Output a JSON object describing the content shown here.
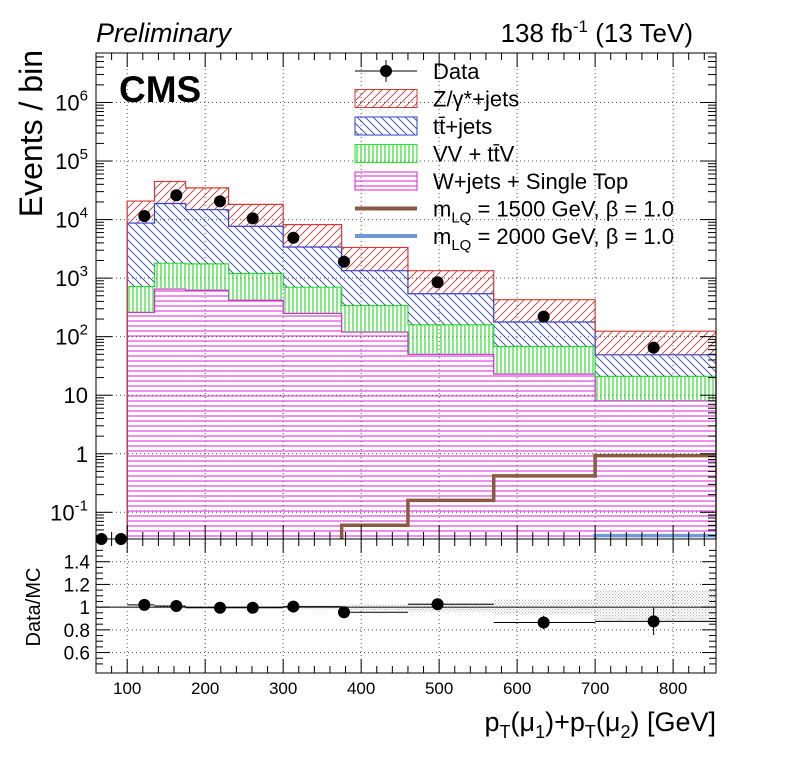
{
  "header": {
    "label_left": "Preliminary",
    "lumi_prefix": "138 fb",
    "lumi_exp": "-1",
    "lumi_suffix": " (13 TeV)",
    "experiment": "CMS"
  },
  "axes": {
    "ylabel": "Events / bin",
    "ratio_ylabel": "Data/MC",
    "xlabel": {
      "p1": "p",
      "s1": "T",
      "p2": "(μ",
      "s2": "1",
      "p3": ")+p",
      "s3": "T",
      "p4": "(μ",
      "s4": "2",
      "p5": ") [GeV]"
    },
    "main_ytick_labels": [
      {
        "label": "10",
        "exp": "-1",
        "value": 0.1
      },
      {
        "label": "1",
        "exp": "",
        "value": 1
      },
      {
        "label": "10",
        "exp": "",
        "value": 10
      },
      {
        "label": "10",
        "exp": "2",
        "value": 100
      },
      {
        "label": "10",
        "exp": "3",
        "value": 1000
      },
      {
        "label": "10",
        "exp": "4",
        "value": 10000
      },
      {
        "label": "10",
        "exp": "5",
        "value": 100000
      },
      {
        "label": "10",
        "exp": "6",
        "value": 1000000
      }
    ],
    "ratio_ytick_labels": [
      "0.6",
      "0.8",
      "1",
      "1.2",
      "1.4"
    ],
    "xtick_labels": [
      "100",
      "200",
      "300",
      "400",
      "500",
      "600",
      "700",
      "800"
    ]
  },
  "legend": [
    {
      "key": "data",
      "style": "marker",
      "name": "Data"
    },
    {
      "key": "zjets",
      "style": "hatch",
      "name": "Z/γ*+jets"
    },
    {
      "key": "ttbar",
      "style": "hatch",
      "name": "tt̄+jets"
    },
    {
      "key": "vv",
      "style": "hatch",
      "name": "VV + tt̄V"
    },
    {
      "key": "wjets",
      "style": "hatch",
      "name": "W+jets + Single Top"
    },
    {
      "key": "lq1500",
      "style": "line",
      "name": "m",
      "sub": "LQ",
      "tail": " = 1500 GeV, β = 1.0"
    },
    {
      "key": "lq2000",
      "style": "line",
      "name": "m",
      "sub": "LQ",
      "tail": " = 2000 GeV, β = 1.0"
    }
  ],
  "colors": {
    "zjets": "#d33a3a",
    "ttbar": "#2a3fcf",
    "vv": "#2fe02f",
    "wjets": "#d820d8",
    "lq1500": "#8b5a43",
    "lq2000": "#6f98d6",
    "grid": "#555555",
    "uncertainty": "#c8c8c8"
  },
  "chart_data": {
    "type": "bar",
    "stacked": true,
    "log_y": true,
    "xlim": [
      60,
      855
    ],
    "ylim": [
      0.035,
      7000000
    ],
    "ratio_ylim": [
      0.42,
      1.6
    ],
    "grid": true,
    "legend_position": "top-right",
    "bin_edges": [
      60,
      80,
      100,
      135,
      175,
      230,
      300,
      375,
      460,
      570,
      700,
      855
    ],
    "series": [
      {
        "key": "wjets",
        "values": [
          0,
          0,
          260,
          650,
          620,
          420,
          250,
          120,
          50,
          23,
          8
        ]
      },
      {
        "key": "vv",
        "values": [
          0,
          0,
          460,
          1150,
          1130,
          780,
          450,
          220,
          110,
          45,
          13
        ]
      },
      {
        "key": "ttbar",
        "values": [
          0,
          0,
          8000,
          17000,
          13000,
          6500,
          2700,
          1000,
          380,
          110,
          28
        ]
      },
      {
        "key": "zjets",
        "values": [
          0,
          0,
          12000,
          26000,
          20000,
          10500,
          4800,
          2000,
          800,
          250,
          75
        ]
      }
    ],
    "signals": [
      {
        "key": "lq1500",
        "values": [
          0,
          0,
          0,
          0,
          0,
          0,
          0.006,
          0.06,
          0.16,
          0.42,
          0.93
        ]
      },
      {
        "key": "lq2000",
        "values": [
          0,
          0,
          0,
          0,
          0,
          0,
          0,
          0.0005,
          0.003,
          0.012,
          0.04
        ]
      }
    ],
    "data_points": [
      {
        "x": 67,
        "y": 0.035
      },
      {
        "x": 92,
        "y": 0.035
      },
      {
        "x": 122,
        "y": 11500
      },
      {
        "x": 163,
        "y": 26000
      },
      {
        "x": 219,
        "y": 20500
      },
      {
        "x": 261,
        "y": 10500
      },
      {
        "x": 313,
        "y": 4900
      },
      {
        "x": 378,
        "y": 1900
      },
      {
        "x": 498,
        "y": 850
      },
      {
        "x": 634,
        "y": 220
      },
      {
        "x": 775,
        "y": 65
      }
    ],
    "ratio_points": [
      {
        "x": 122,
        "y": 1.02,
        "xerr": [
          100,
          135
        ],
        "yerr": 0.01
      },
      {
        "x": 163,
        "y": 1.01,
        "xerr": [
          135,
          175
        ],
        "yerr": 0.01
      },
      {
        "x": 219,
        "y": 0.995,
        "xerr": [
          175,
          230
        ],
        "yerr": 0.01
      },
      {
        "x": 261,
        "y": 0.995,
        "xerr": [
          230,
          300
        ],
        "yerr": 0.012
      },
      {
        "x": 313,
        "y": 1.005,
        "xerr": [
          300,
          375
        ],
        "yerr": 0.015
      },
      {
        "x": 378,
        "y": 0.955,
        "xerr": [
          375,
          460
        ],
        "yerr": 0.02
      },
      {
        "x": 498,
        "y": 1.025,
        "xerr": [
          460,
          570
        ],
        "yerr": 0.03
      },
      {
        "x": 634,
        "y": 0.865,
        "xerr": [
          570,
          700
        ],
        "yerr": 0.06
      },
      {
        "x": 775,
        "y": 0.875,
        "xerr": [
          700,
          855
        ],
        "yerr": 0.12
      }
    ],
    "ratio_uncertainty": [
      {
        "x0": 100,
        "x1": 135,
        "lo": 0.99,
        "hi": 1.01
      },
      {
        "x0": 135,
        "x1": 175,
        "lo": 0.99,
        "hi": 1.01
      },
      {
        "x0": 175,
        "x1": 230,
        "lo": 0.985,
        "hi": 1.015
      },
      {
        "x0": 230,
        "x1": 300,
        "lo": 0.985,
        "hi": 1.015
      },
      {
        "x0": 300,
        "x1": 375,
        "lo": 0.98,
        "hi": 1.02
      },
      {
        "x0": 375,
        "x1": 460,
        "lo": 0.975,
        "hi": 1.025
      },
      {
        "x0": 460,
        "x1": 570,
        "lo": 0.96,
        "hi": 1.04
      },
      {
        "x0": 570,
        "x1": 700,
        "lo": 0.93,
        "hi": 1.07
      },
      {
        "x0": 700,
        "x1": 855,
        "lo": 0.87,
        "hi": 1.15
      }
    ]
  }
}
